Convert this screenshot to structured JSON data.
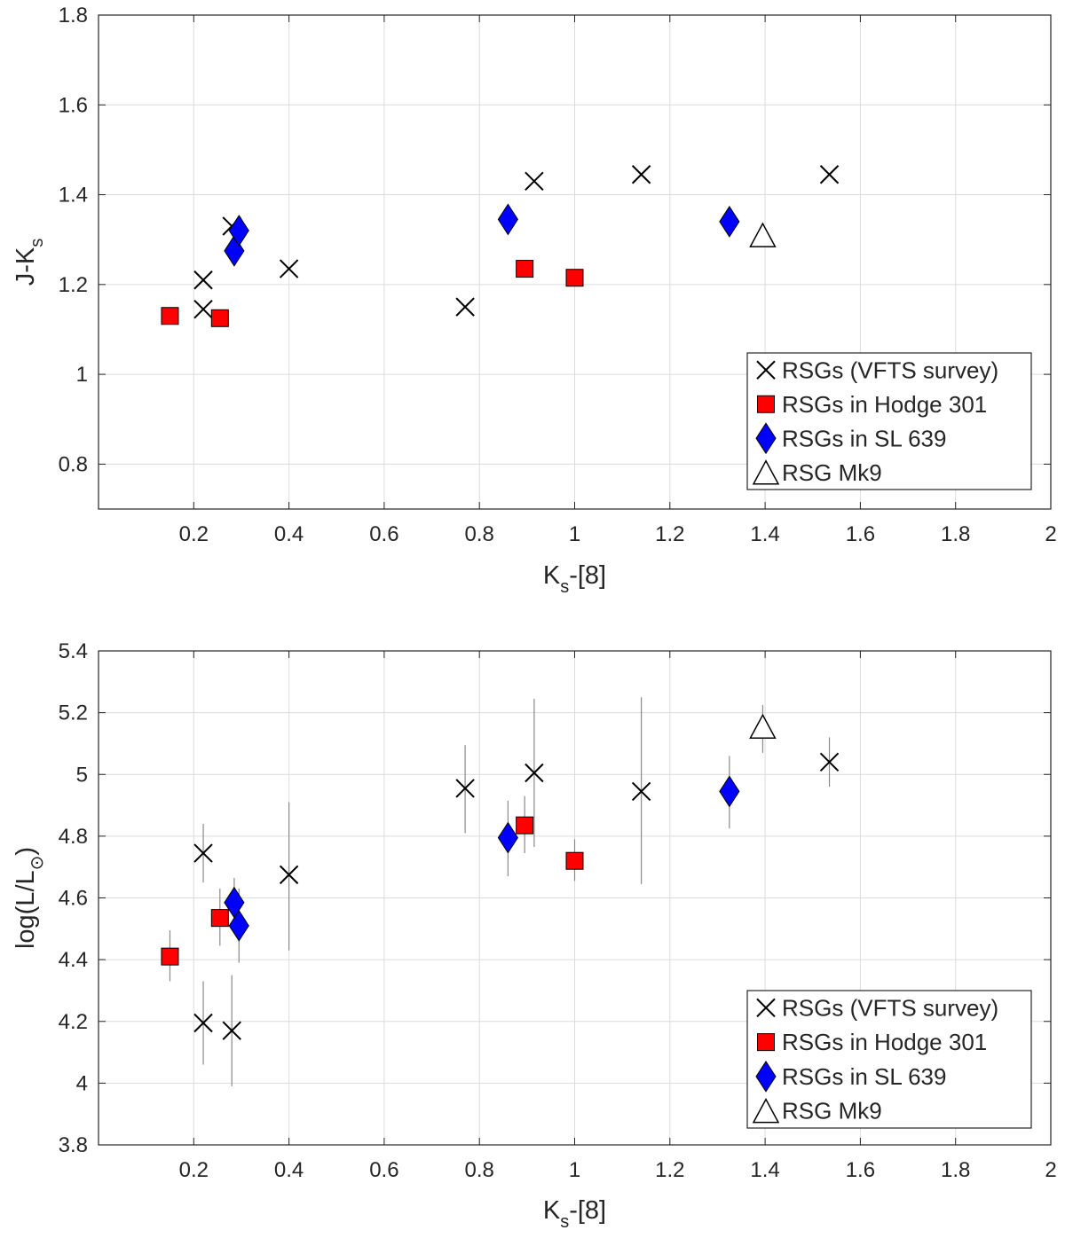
{
  "chart_data": [
    {
      "type": "scatter",
      "xlabel_main": "K",
      "xlabel_sub": "s",
      "xlabel_tail": "-[8]",
      "ylabel_main": "J-K",
      "ylabel_sub": "s",
      "xlim": [
        0,
        2
      ],
      "ylim": [
        0.7,
        1.8
      ],
      "xticks": [
        0.2,
        0.4,
        0.6,
        0.8,
        1,
        1.2,
        1.4,
        1.6,
        1.8,
        2
      ],
      "yticks": [
        0.8,
        1,
        1.2,
        1.4,
        1.6,
        1.8
      ],
      "xtick_labels": [
        "0.2",
        "0.4",
        "0.6",
        "0.8",
        "1",
        "1.2",
        "1.4",
        "1.6",
        "1.8",
        "2"
      ],
      "ytick_labels": [
        "0.8",
        "1",
        "1.2",
        "1.4",
        "1.6",
        "1.8"
      ],
      "grid": true,
      "legend_position": "bottom-right",
      "series": [
        {
          "name": "RSGs (VFTS survey)",
          "marker": "x",
          "color": "#000000",
          "points": [
            {
              "x": 0.22,
              "y": 1.21
            },
            {
              "x": 0.22,
              "y": 1.145
            },
            {
              "x": 0.28,
              "y": 1.33
            },
            {
              "x": 0.4,
              "y": 1.235
            },
            {
              "x": 0.77,
              "y": 1.15
            },
            {
              "x": 0.915,
              "y": 1.43
            },
            {
              "x": 1.14,
              "y": 1.445
            },
            {
              "x": 1.535,
              "y": 1.445
            }
          ]
        },
        {
          "name": "RSGs in Hodge 301",
          "marker": "square",
          "color": "#ff0000",
          "points": [
            {
              "x": 0.15,
              "y": 1.13
            },
            {
              "x": 0.255,
              "y": 1.125
            },
            {
              "x": 0.895,
              "y": 1.235
            },
            {
              "x": 1.0,
              "y": 1.215
            }
          ]
        },
        {
          "name": "RSGs in SL 639",
          "marker": "diamond",
          "color": "#0000ff",
          "points": [
            {
              "x": 0.285,
              "y": 1.275
            },
            {
              "x": 0.295,
              "y": 1.32
            },
            {
              "x": 0.86,
              "y": 1.345
            },
            {
              "x": 1.325,
              "y": 1.34
            }
          ]
        },
        {
          "name": "RSG Mk9",
          "marker": "triangle",
          "color": "#ffffff",
          "points": [
            {
              "x": 1.395,
              "y": 1.31
            }
          ]
        }
      ]
    },
    {
      "type": "scatter",
      "xlabel_main": "K",
      "xlabel_sub": "s",
      "xlabel_tail": "-[8]",
      "ylabel_main": "log(L/L",
      "ylabel_sub": "⊙",
      "ylabel_tail": ")",
      "xlim": [
        0,
        2
      ],
      "ylim": [
        3.8,
        5.4
      ],
      "xticks": [
        0.2,
        0.4,
        0.6,
        0.8,
        1,
        1.2,
        1.4,
        1.6,
        1.8,
        2
      ],
      "yticks": [
        3.8,
        4,
        4.2,
        4.4,
        4.6,
        4.8,
        5,
        5.2,
        5.4
      ],
      "xtick_labels": [
        "0.2",
        "0.4",
        "0.6",
        "0.8",
        "1",
        "1.2",
        "1.4",
        "1.6",
        "1.8",
        "2"
      ],
      "ytick_labels": [
        "3.8",
        "4",
        "4.2",
        "4.4",
        "4.6",
        "4.8",
        "5",
        "5.2",
        "5.4"
      ],
      "grid": true,
      "legend_position": "bottom-right",
      "series": [
        {
          "name": "RSGs (VFTS survey)",
          "marker": "x",
          "color": "#000000",
          "points": [
            {
              "x": 0.22,
              "y": 4.745,
              "err_low": 4.65,
              "err_high": 4.84
            },
            {
              "x": 0.22,
              "y": 4.195,
              "err_low": 4.06,
              "err_high": 4.33
            },
            {
              "x": 0.28,
              "y": 4.17,
              "err_low": 3.99,
              "err_high": 4.35
            },
            {
              "x": 0.4,
              "y": 4.675,
              "err_low": 4.43,
              "err_high": 4.91
            },
            {
              "x": 0.77,
              "y": 4.955,
              "err_low": 4.81,
              "err_high": 5.095
            },
            {
              "x": 0.915,
              "y": 5.005,
              "err_low": 4.765,
              "err_high": 5.245
            },
            {
              "x": 1.14,
              "y": 4.945,
              "err_low": 4.645,
              "err_high": 5.25
            },
            {
              "x": 1.535,
              "y": 5.04,
              "err_low": 4.96,
              "err_high": 5.12
            }
          ]
        },
        {
          "name": "RSGs in Hodge 301",
          "marker": "square",
          "color": "#ff0000",
          "points": [
            {
              "x": 0.15,
              "y": 4.41,
              "err_low": 4.33,
              "err_high": 4.495
            },
            {
              "x": 0.255,
              "y": 4.535,
              "err_low": 4.445,
              "err_high": 4.63
            },
            {
              "x": 0.895,
              "y": 4.835,
              "err_low": 4.745,
              "err_high": 4.93
            },
            {
              "x": 1.0,
              "y": 4.72,
              "err_low": 4.655,
              "err_high": 4.79
            }
          ]
        },
        {
          "name": "RSGs in SL 639",
          "marker": "diamond",
          "color": "#0000ff",
          "points": [
            {
              "x": 0.285,
              "y": 4.585,
              "err_low": 4.49,
              "err_high": 4.665
            },
            {
              "x": 0.295,
              "y": 4.51,
              "err_low": 4.39,
              "err_high": 4.63
            },
            {
              "x": 0.86,
              "y": 4.795,
              "err_low": 4.67,
              "err_high": 4.915
            },
            {
              "x": 1.325,
              "y": 4.945,
              "err_low": 4.825,
              "err_high": 5.06
            }
          ]
        },
        {
          "name": "RSG Mk9",
          "marker": "triangle",
          "color": "#ffffff",
          "points": [
            {
              "x": 1.395,
              "y": 5.155,
              "err_low": 5.07,
              "err_high": 5.225
            }
          ]
        }
      ]
    }
  ]
}
